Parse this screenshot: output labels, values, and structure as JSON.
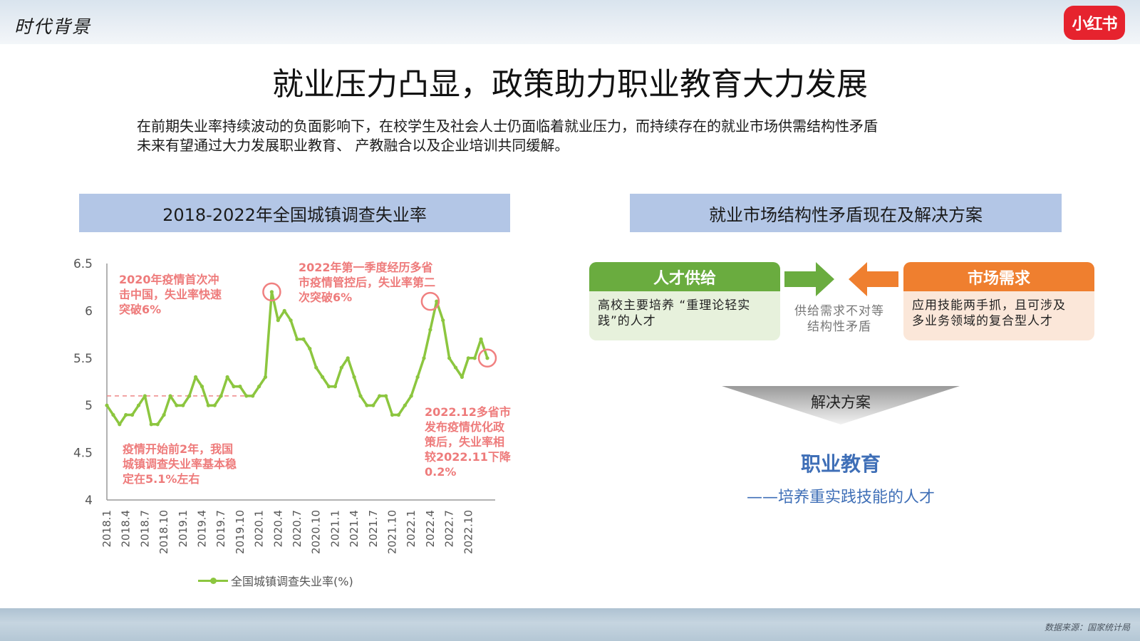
{
  "header": {
    "section_title": "时代背景",
    "logo_text": "小红书"
  },
  "title": "就业压力凸显，政策助力职业教育大力发展",
  "intro": [
    "在前期失业率持续波动的负面影响下，在校学生及社会人士仍面临着就业压力，而持续存在的就业市场供需结构性矛盾",
    "未来有望通过大力发展职业教育、  产教融合以及企业培训共同缓解。"
  ],
  "left_panel": {
    "header": "2018-2022年全国城镇调查失业率"
  },
  "chart_data": {
    "type": "line",
    "title": "2018-2022年全国城镇调查失业率",
    "xlabel": "",
    "ylabel": "",
    "ylim": [
      4,
      6.5
    ],
    "yticks": [
      "6.5",
      "6",
      "5.5",
      "5",
      "4.5",
      "4"
    ],
    "xtick_labels": [
      "2018.1",
      "2018.4",
      "2018.7",
      "2018.10",
      "2019.1",
      "2019.4",
      "2019.7",
      "2019.10",
      "2020.1",
      "2020.4",
      "2020.7",
      "2020.10",
      "2021.1",
      "2021.4",
      "2021.7",
      "2021.10",
      "2022.1",
      "2022.4",
      "2022.7",
      "2022.10"
    ],
    "reference_line": 5.1,
    "series": [
      {
        "name": "全国城镇调查失业率(%)",
        "color": "#8cc63f",
        "values": [
          5.0,
          4.9,
          4.8,
          4.9,
          4.9,
          5.0,
          5.1,
          4.8,
          4.8,
          4.9,
          5.1,
          5.0,
          5.0,
          5.1,
          5.3,
          5.2,
          5.0,
          5.0,
          5.1,
          5.3,
          5.2,
          5.2,
          5.1,
          5.1,
          5.2,
          5.3,
          6.2,
          5.9,
          6.0,
          5.9,
          5.7,
          5.7,
          5.6,
          5.4,
          5.3,
          5.2,
          5.2,
          5.4,
          5.5,
          5.3,
          5.1,
          5.0,
          5.0,
          5.1,
          5.1,
          4.9,
          4.9,
          5.0,
          5.1,
          5.3,
          5.5,
          5.8,
          6.1,
          5.9,
          5.5,
          5.4,
          5.3,
          5.5,
          5.5,
          5.7,
          5.5
        ]
      }
    ],
    "highlights": [
      {
        "label": "2020.2",
        "value": 6.2
      },
      {
        "label": "2022.4",
        "value": 6.1
      },
      {
        "label": "2022.12",
        "value": 5.5
      }
    ],
    "legend": "bottom",
    "annotations": [
      {
        "lines": [
          "2020年疫情首次冲",
          "击中国，失业率快速",
          "突破6%"
        ]
      },
      {
        "lines": [
          "2022年第一季度经历多省",
          "市疫情管控后，失业率第二",
          "次突破6%"
        ]
      },
      {
        "lines": [
          "2022.12多省市",
          "发布疫情优化政",
          "策后，失业率相",
          "较2022.11下降",
          "0.2%"
        ]
      },
      {
        "lines": [
          "疫情开始前2年，我国",
          "城镇调查失业率基本稳",
          "定在5.1%左右"
        ]
      }
    ]
  },
  "right_panel": {
    "header": "就业市场结构性矛盾现在及解决方案",
    "supply": {
      "title": "人才供给",
      "text": [
        "高校主要培养 “重理论轻实",
        "践”的人才"
      ]
    },
    "demand": {
      "title": "市场需求",
      "text": [
        "应用技能两手抓，且可涉及",
        "多业务领域的复合型人才"
      ]
    },
    "conflict": [
      "供给需求不对等",
      "结构性矛盾"
    ],
    "solution_label": "解决方案",
    "solution": "职业教育",
    "solution_sub": "——培养重实践技能的人才",
    "colors": {
      "supply": "#6aac3f",
      "demand": "#ef7f2f",
      "solution": "#3f6fb7"
    }
  },
  "footer": {
    "source": "数据来源：国家统计局"
  }
}
